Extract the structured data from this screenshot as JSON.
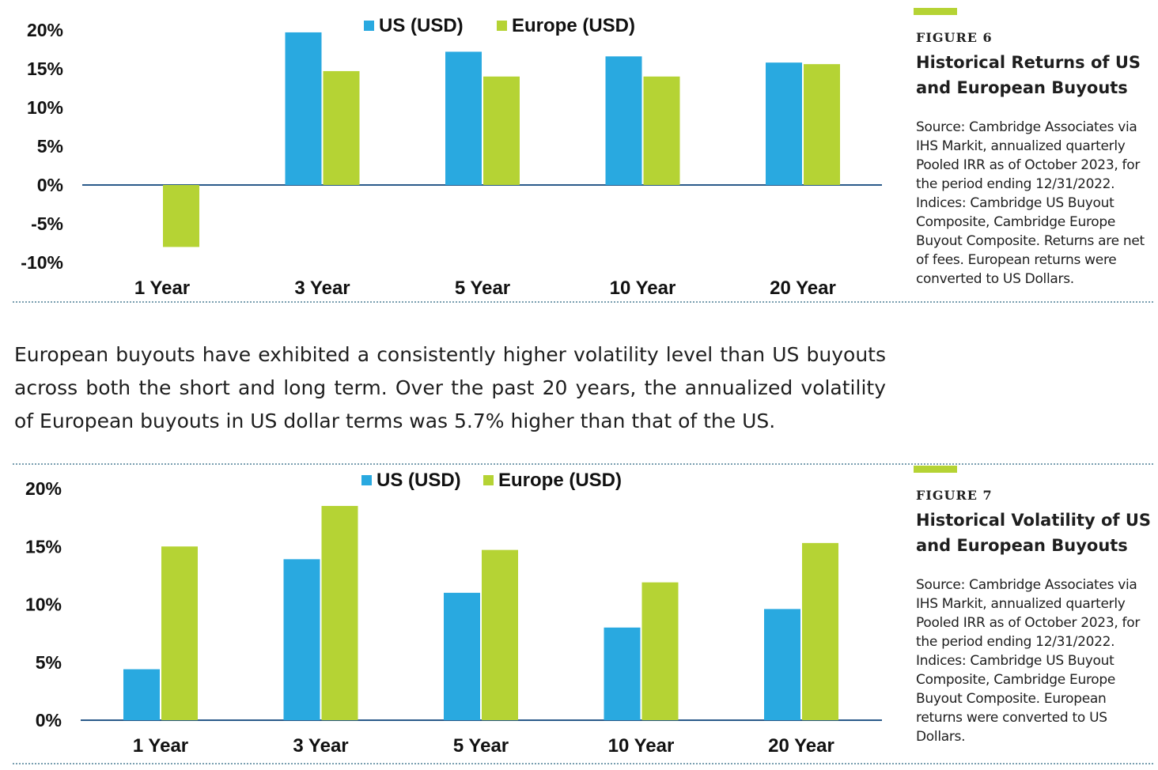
{
  "legend": {
    "us_label": "US (USD)",
    "europe_label": "Europe (USD)"
  },
  "colors": {
    "us": "#29a9e0",
    "europe": "#b5d334",
    "baseline": "#2a5a8a"
  },
  "figure6": {
    "label": "FIGURE 6",
    "title": "Historical Returns of US and European Buyouts",
    "source": "Source: Cambridge Associates via IHS Markit, annualized quarterly Pooled IRR as of October 2023, for the period ending 12/31/2022. Indices: Cambridge US Buyout Composite, Cambridge Europe Buyout Composite. Returns are net of fees. European returns were converted to US Dollars."
  },
  "body": {
    "paragraph": "European buyouts have exhibited a consistently higher volatility level than US buyouts across both the short and long term. Over the past 20 years, the annualized volatility of European buyouts in US dollar terms was 5.7% higher than that of the US."
  },
  "figure7": {
    "label": "FIGURE 7",
    "title": "Historical Volatility of US and European Buyouts",
    "source": "Source: Cambridge Associates via IHS Markit, annualized quarterly Pooled IRR as of October 2023, for the period ending 12/31/2022. Indices: Cambridge US Buyout Composite, Cambridge Europe Buyout Composite. European returns were converted to US Dollars."
  },
  "chart_data": [
    {
      "type": "bar",
      "categories": [
        "1 Year",
        "3 Year",
        "5 Year",
        "10 Year",
        "20 Year"
      ],
      "series": [
        {
          "name": "US (USD)",
          "values": [
            0.0,
            19.7,
            17.2,
            16.6,
            15.8
          ]
        },
        {
          "name": "Europe (USD)",
          "values": [
            -8.0,
            14.7,
            14.0,
            14.0,
            15.6
          ]
        }
      ],
      "yticks": [
        "20%",
        "15%",
        "10%",
        "5%",
        "0%",
        "-5%",
        "-10%"
      ],
      "ylim": [
        -10,
        20
      ],
      "legend_position": "top-center",
      "grid": false
    },
    {
      "type": "bar",
      "categories": [
        "1 Year",
        "3 Year",
        "5 Year",
        "10 Year",
        "20 Year"
      ],
      "series": [
        {
          "name": "US (USD)",
          "values": [
            4.4,
            13.9,
            11.0,
            8.0,
            9.6
          ]
        },
        {
          "name": "Europe (USD)",
          "values": [
            15.0,
            18.5,
            14.7,
            11.9,
            15.3
          ]
        }
      ],
      "yticks": [
        "20%",
        "15%",
        "10%",
        "5%",
        "0%"
      ],
      "ylim": [
        0,
        20
      ],
      "legend_position": "top-center",
      "grid": false
    }
  ]
}
